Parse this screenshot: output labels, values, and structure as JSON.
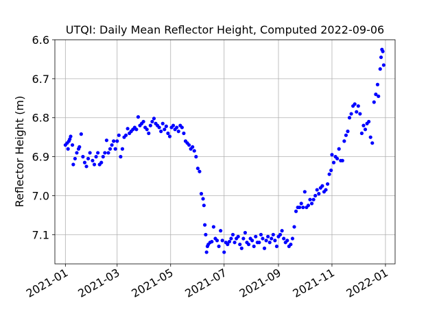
{
  "chart_data": {
    "type": "scatter",
    "title": "UTQI: Daily Mean Reflector Height, Computed 2022-09-06",
    "xlabel": "",
    "ylabel": "Reflector Height (m)",
    "ylim": [
      7.175,
      6.6
    ],
    "y_inverted": true,
    "xlim": [
      "2020-12-20",
      "2022-01-12"
    ],
    "x_ticks": [
      "2021-01",
      "2021-03",
      "2021-05",
      "2021-07",
      "2021-09",
      "2021-11",
      "2022-01"
    ],
    "y_ticks": [
      6.6,
      6.7,
      6.8,
      6.9,
      7.0,
      7.1
    ],
    "y_tick_labels": [
      "6.6",
      "6.7",
      "6.8",
      "6.9",
      "7.0",
      "7.1"
    ],
    "grid": true,
    "marker_color": "#0000ff",
    "series": [
      {
        "points": [
          [
            "2021-01-01",
            6.87
          ],
          [
            "2021-01-03",
            6.865
          ],
          [
            "2021-01-04",
            6.88
          ],
          [
            "2021-01-05",
            6.86
          ],
          [
            "2021-01-06",
            6.855
          ],
          [
            "2021-01-07",
            6.848
          ],
          [
            "2021-01-09",
            6.87
          ],
          [
            "2021-01-10",
            6.92
          ],
          [
            "2021-01-12",
            6.905
          ],
          [
            "2021-01-14",
            6.89
          ],
          [
            "2021-01-16",
            6.88
          ],
          [
            "2021-01-17",
            6.875
          ],
          [
            "2021-01-19",
            6.842
          ],
          [
            "2021-01-21",
            6.9
          ],
          [
            "2021-01-23",
            6.915
          ],
          [
            "2021-01-25",
            6.925
          ],
          [
            "2021-01-27",
            6.905
          ],
          [
            "2021-01-29",
            6.89
          ],
          [
            "2021-02-01",
            6.91
          ],
          [
            "2021-02-03",
            6.92
          ],
          [
            "2021-02-05",
            6.9
          ],
          [
            "2021-02-07",
            6.89
          ],
          [
            "2021-02-09",
            6.92
          ],
          [
            "2021-02-11",
            6.915
          ],
          [
            "2021-02-13",
            6.9
          ],
          [
            "2021-02-15",
            6.89
          ],
          [
            "2021-02-17",
            6.858
          ],
          [
            "2021-02-19",
            6.89
          ],
          [
            "2021-02-21",
            6.88
          ],
          [
            "2021-02-23",
            6.87
          ],
          [
            "2021-02-25",
            6.86
          ],
          [
            "2021-02-27",
            6.88
          ],
          [
            "2021-03-01",
            6.86
          ],
          [
            "2021-03-03",
            6.845
          ],
          [
            "2021-03-05",
            6.9
          ],
          [
            "2021-03-07",
            6.88
          ],
          [
            "2021-03-09",
            6.85
          ],
          [
            "2021-03-11",
            6.845
          ],
          [
            "2021-03-13",
            6.828
          ],
          [
            "2021-03-15",
            6.84
          ],
          [
            "2021-03-17",
            6.835
          ],
          [
            "2021-03-19",
            6.83
          ],
          [
            "2021-03-21",
            6.825
          ],
          [
            "2021-03-23",
            6.83
          ],
          [
            "2021-03-25",
            6.798
          ],
          [
            "2021-03-27",
            6.82
          ],
          [
            "2021-03-29",
            6.815
          ],
          [
            "2021-03-31",
            6.81
          ],
          [
            "2021-04-02",
            6.825
          ],
          [
            "2021-04-04",
            6.83
          ],
          [
            "2021-04-06",
            6.84
          ],
          [
            "2021-04-08",
            6.82
          ],
          [
            "2021-04-10",
            6.81
          ],
          [
            "2021-04-12",
            6.802
          ],
          [
            "2021-04-14",
            6.815
          ],
          [
            "2021-04-16",
            6.82
          ],
          [
            "2021-04-18",
            6.825
          ],
          [
            "2021-04-20",
            6.835
          ],
          [
            "2021-04-22",
            6.815
          ],
          [
            "2021-04-24",
            6.83
          ],
          [
            "2021-04-26",
            6.822
          ],
          [
            "2021-04-28",
            6.84
          ],
          [
            "2021-04-30",
            6.848
          ],
          [
            "2021-05-02",
            6.825
          ],
          [
            "2021-05-04",
            6.82
          ],
          [
            "2021-05-06",
            6.83
          ],
          [
            "2021-05-08",
            6.825
          ],
          [
            "2021-05-10",
            6.835
          ],
          [
            "2021-05-12",
            6.82
          ],
          [
            "2021-05-14",
            6.825
          ],
          [
            "2021-05-16",
            6.84
          ],
          [
            "2021-05-18",
            6.86
          ],
          [
            "2021-05-20",
            6.865
          ],
          [
            "2021-05-22",
            6.87
          ],
          [
            "2021-05-24",
            6.88
          ],
          [
            "2021-05-26",
            6.875
          ],
          [
            "2021-05-28",
            6.885
          ],
          [
            "2021-05-30",
            6.9
          ],
          [
            "2021-06-01",
            6.93
          ],
          [
            "2021-06-03",
            6.938
          ],
          [
            "2021-06-05",
            6.995
          ],
          [
            "2021-06-07",
            7.008
          ],
          [
            "2021-06-08",
            7.025
          ],
          [
            "2021-06-09",
            7.075
          ],
          [
            "2021-06-10",
            7.1
          ],
          [
            "2021-06-11",
            7.145
          ],
          [
            "2021-06-12",
            7.13
          ],
          [
            "2021-06-13",
            7.125
          ],
          [
            "2021-06-15",
            7.12
          ],
          [
            "2021-06-17",
            7.118
          ],
          [
            "2021-06-19",
            7.08
          ],
          [
            "2021-06-21",
            7.11
          ],
          [
            "2021-06-23",
            7.115
          ],
          [
            "2021-06-25",
            7.13
          ],
          [
            "2021-06-27",
            7.09
          ],
          [
            "2021-06-29",
            7.115
          ],
          [
            "2021-07-01",
            7.145
          ],
          [
            "2021-07-03",
            7.12
          ],
          [
            "2021-07-05",
            7.125
          ],
          [
            "2021-07-07",
            7.118
          ],
          [
            "2021-07-09",
            7.11
          ],
          [
            "2021-07-11",
            7.1
          ],
          [
            "2021-07-13",
            7.12
          ],
          [
            "2021-07-15",
            7.11
          ],
          [
            "2021-07-17",
            7.105
          ],
          [
            "2021-07-19",
            7.125
          ],
          [
            "2021-07-21",
            7.135
          ],
          [
            "2021-07-23",
            7.11
          ],
          [
            "2021-07-25",
            7.095
          ],
          [
            "2021-07-27",
            7.12
          ],
          [
            "2021-07-29",
            7.125
          ],
          [
            "2021-07-31",
            7.11
          ],
          [
            "2021-08-02",
            7.115
          ],
          [
            "2021-08-04",
            7.13
          ],
          [
            "2021-08-06",
            7.105
          ],
          [
            "2021-08-08",
            7.12
          ],
          [
            "2021-08-10",
            7.12
          ],
          [
            "2021-08-12",
            7.1
          ],
          [
            "2021-08-14",
            7.11
          ],
          [
            "2021-08-16",
            7.135
          ],
          [
            "2021-08-18",
            7.115
          ],
          [
            "2021-08-20",
            7.105
          ],
          [
            "2021-08-22",
            7.12
          ],
          [
            "2021-08-24",
            7.11
          ],
          [
            "2021-08-26",
            7.1
          ],
          [
            "2021-08-28",
            7.115
          ],
          [
            "2021-08-30",
            7.13
          ],
          [
            "2021-09-01",
            7.105
          ],
          [
            "2021-09-03",
            7.1
          ],
          [
            "2021-09-05",
            7.09
          ],
          [
            "2021-09-07",
            7.11
          ],
          [
            "2021-09-09",
            7.12
          ],
          [
            "2021-09-11",
            7.115
          ],
          [
            "2021-09-13",
            7.13
          ],
          [
            "2021-09-15",
            7.125
          ],
          [
            "2021-09-17",
            7.11
          ],
          [
            "2021-09-19",
            7.08
          ],
          [
            "2021-09-21",
            7.04
          ],
          [
            "2021-09-23",
            7.03
          ],
          [
            "2021-09-25",
            7.03
          ],
          [
            "2021-09-27",
            7.02
          ],
          [
            "2021-09-29",
            7.03
          ],
          [
            "2021-10-01",
            6.99
          ],
          [
            "2021-10-03",
            7.03
          ],
          [
            "2021-10-05",
            7.025
          ],
          [
            "2021-10-07",
            7.01
          ],
          [
            "2021-10-09",
            7.02
          ],
          [
            "2021-10-11",
            7.01
          ],
          [
            "2021-10-13",
            7.0
          ],
          [
            "2021-10-15",
            6.985
          ],
          [
            "2021-10-17",
            6.995
          ],
          [
            "2021-10-19",
            6.98
          ],
          [
            "2021-10-21",
            6.975
          ],
          [
            "2021-10-23",
            6.99
          ],
          [
            "2021-10-25",
            6.985
          ],
          [
            "2021-10-27",
            6.97
          ],
          [
            "2021-10-29",
            6.945
          ],
          [
            "2021-10-31",
            6.935
          ],
          [
            "2021-11-01",
            6.895
          ],
          [
            "2021-11-03",
            6.915
          ],
          [
            "2021-11-05",
            6.9
          ],
          [
            "2021-11-07",
            6.905
          ],
          [
            "2021-11-09",
            6.88
          ],
          [
            "2021-11-11",
            6.91
          ],
          [
            "2021-11-13",
            6.91
          ],
          [
            "2021-11-15",
            6.86
          ],
          [
            "2021-11-17",
            6.845
          ],
          [
            "2021-11-19",
            6.835
          ],
          [
            "2021-11-21",
            6.8
          ],
          [
            "2021-11-23",
            6.79
          ],
          [
            "2021-11-25",
            6.77
          ],
          [
            "2021-11-27",
            6.765
          ],
          [
            "2021-11-29",
            6.785
          ],
          [
            "2021-12-01",
            6.77
          ],
          [
            "2021-12-03",
            6.79
          ],
          [
            "2021-12-05",
            6.84
          ],
          [
            "2021-12-07",
            6.82
          ],
          [
            "2021-12-09",
            6.83
          ],
          [
            "2021-12-11",
            6.815
          ],
          [
            "2021-12-13",
            6.81
          ],
          [
            "2021-12-15",
            6.85
          ],
          [
            "2021-12-17",
            6.865
          ],
          [
            "2021-12-19",
            6.76
          ],
          [
            "2021-12-21",
            6.74
          ],
          [
            "2021-12-23",
            6.715
          ],
          [
            "2021-12-24",
            6.745
          ],
          [
            "2021-12-26",
            6.675
          ],
          [
            "2021-12-27",
            6.645
          ],
          [
            "2021-12-28",
            6.625
          ],
          [
            "2021-12-29",
            6.63
          ],
          [
            "2021-12-30",
            6.665
          ]
        ]
      }
    ]
  }
}
